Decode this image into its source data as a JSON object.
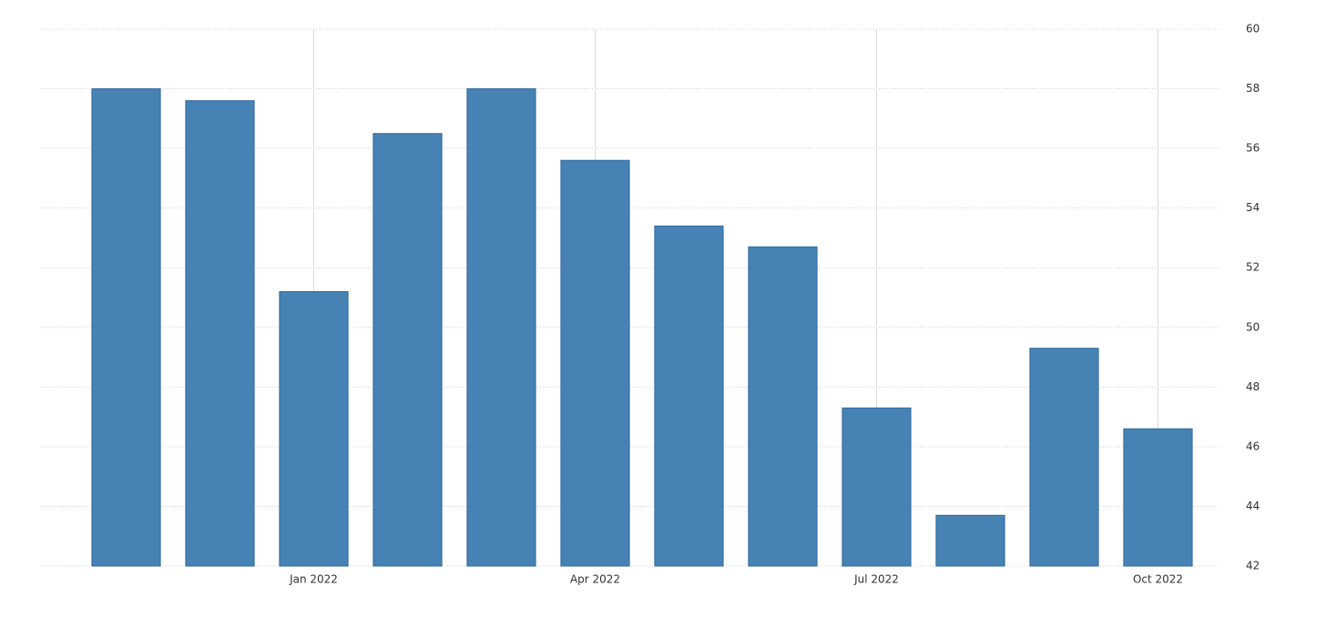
{
  "chart_data": {
    "type": "bar",
    "categories": [
      null,
      null,
      "Jan 2022",
      null,
      null,
      "Apr 2022",
      null,
      null,
      "Jul 2022",
      null,
      null,
      "Oct 2022"
    ],
    "values": [
      58,
      57.6,
      51.2,
      56.5,
      58,
      55.6,
      53.4,
      52.7,
      47.3,
      43.7,
      49.3,
      46.6
    ],
    "color": "#4682b4",
    "ylim": [
      42,
      60
    ],
    "yticks": [
      42,
      44,
      46,
      48,
      50,
      52,
      54,
      56,
      58,
      60
    ],
    "grid": true
  }
}
